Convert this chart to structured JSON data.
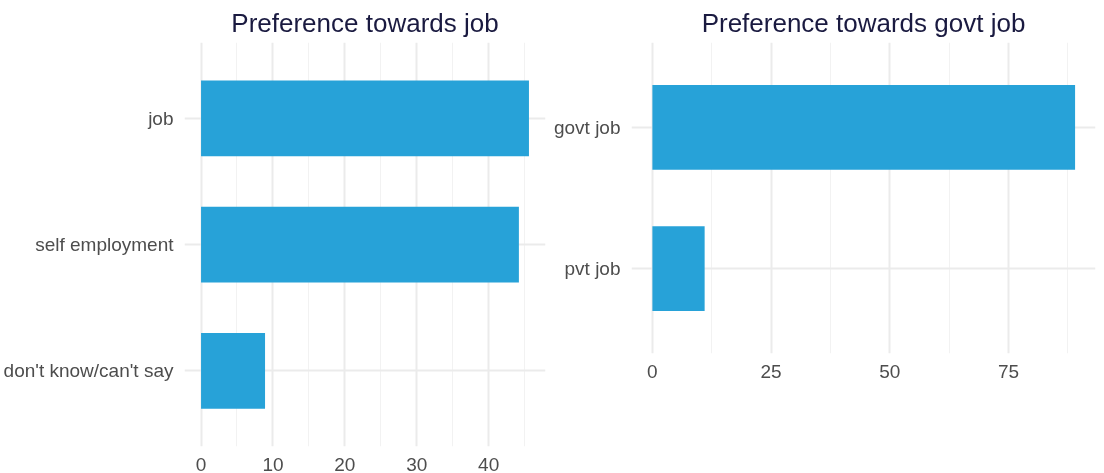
{
  "chart_data": [
    {
      "type": "bar",
      "orientation": "horizontal",
      "title": "Preference towards job",
      "categories": [
        "job",
        "self employment",
        "don't know/can't say"
      ],
      "values": [
        45.6,
        44.2,
        8.9
      ],
      "color": "#27a2d8",
      "xlim": [
        -2.3,
        47.9
      ],
      "xticks": [
        0,
        10,
        20,
        30,
        40
      ],
      "grid": true
    },
    {
      "type": "bar",
      "orientation": "horizontal",
      "title": "Preference towards govt job",
      "categories": [
        "govt job",
        "pvt job"
      ],
      "values": [
        89,
        11
      ],
      "color": "#27a2d8",
      "xlim": [
        -4.4,
        93.3
      ],
      "xticks": [
        0,
        25,
        50,
        75
      ],
      "grid": true
    }
  ]
}
